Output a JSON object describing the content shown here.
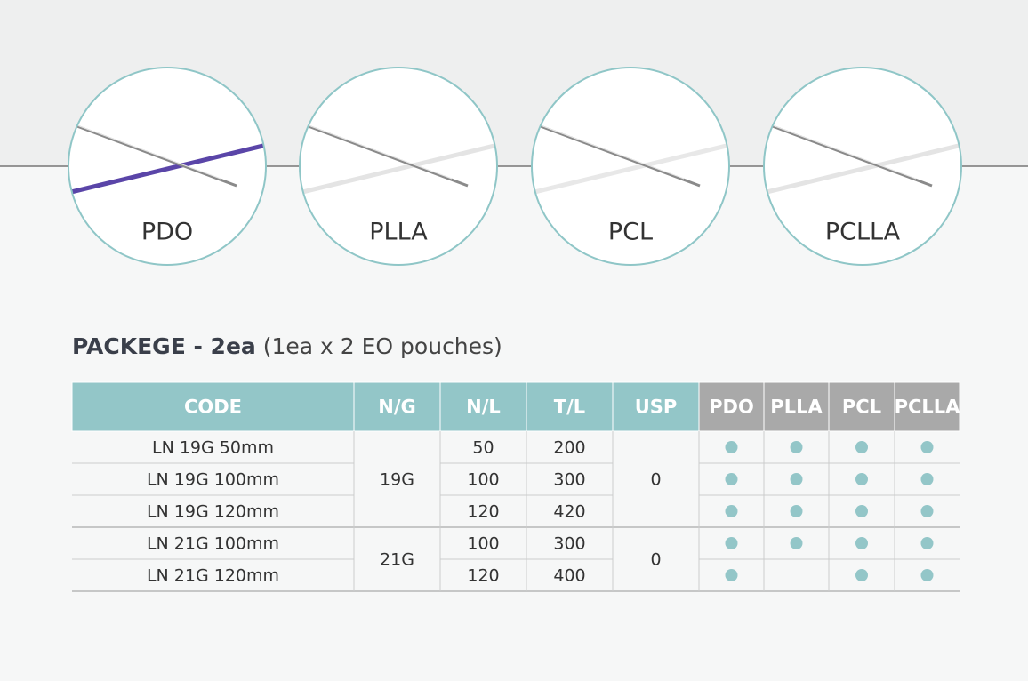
{
  "materials": [
    "PDO",
    "PLLA",
    "PCL",
    "PCLLA"
  ],
  "package": {
    "title": "PACKEGE - 2ea",
    "note": "(1ea x 2 EO pouches)"
  },
  "table": {
    "headers": [
      "CODE",
      "N/G",
      "N/L",
      "T/L",
      "USP",
      "PDO",
      "PLLA",
      "PCL",
      "PCLLA"
    ],
    "groups": [
      {
        "ng": "19G",
        "usp": 0,
        "rows": [
          {
            "code": "LN 19G 50mm",
            "nl": 50,
            "tl": 200,
            "available": [
              true,
              true,
              true,
              true
            ]
          },
          {
            "code": "LN 19G 100mm",
            "nl": 100,
            "tl": 300,
            "available": [
              true,
              true,
              true,
              true
            ]
          },
          {
            "code": "LN 19G 120mm",
            "nl": 120,
            "tl": 420,
            "available": [
              true,
              true,
              true,
              true
            ]
          }
        ]
      },
      {
        "ng": "21G",
        "usp": 0,
        "rows": [
          {
            "code": "LN 21G 100mm",
            "nl": 100,
            "tl": 300,
            "available": [
              true,
              true,
              true,
              true
            ]
          },
          {
            "code": "LN 21G 120mm",
            "nl": 120,
            "tl": 400,
            "available": [
              true,
              false,
              true,
              true
            ]
          }
        ]
      }
    ]
  }
}
